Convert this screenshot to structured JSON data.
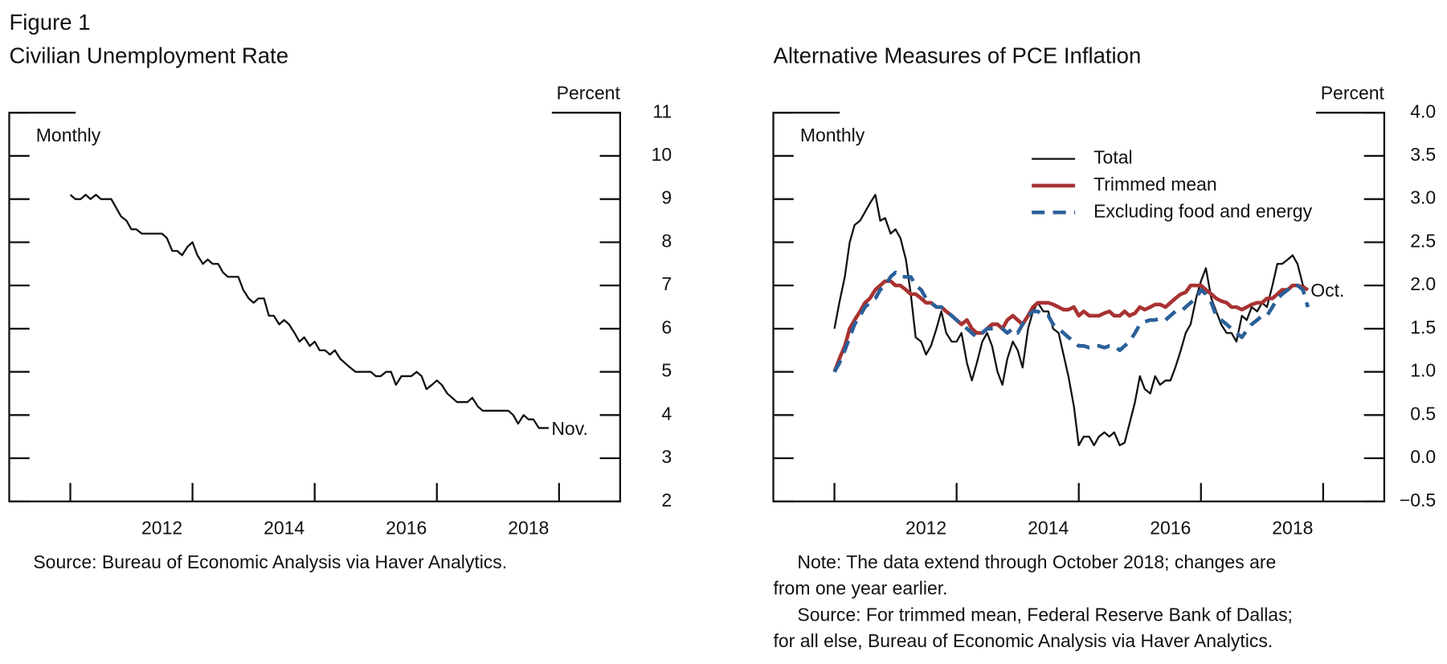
{
  "figure_label": "Figure 1",
  "chart_data": [
    {
      "type": "line",
      "title": "Civilian Unemployment Rate",
      "y_unit": "Percent",
      "frequency": "Monthly",
      "end_label": "Nov.",
      "source": [
        "Source: Bureau of Economic Analysis via Haver Analytics."
      ],
      "color": "#111111",
      "x": [
        2011.0,
        2011.08,
        2011.17,
        2011.25,
        2011.33,
        2011.42,
        2011.5,
        2011.58,
        2011.67,
        2011.75,
        2011.83,
        2011.92,
        2012.0,
        2012.08,
        2012.17,
        2012.25,
        2012.33,
        2012.42,
        2012.5,
        2012.58,
        2012.67,
        2012.75,
        2012.83,
        2012.92,
        2013.0,
        2013.08,
        2013.17,
        2013.25,
        2013.33,
        2013.42,
        2013.5,
        2013.58,
        2013.67,
        2013.75,
        2013.83,
        2013.92,
        2014.0,
        2014.08,
        2014.17,
        2014.25,
        2014.33,
        2014.42,
        2014.5,
        2014.58,
        2014.67,
        2014.75,
        2014.83,
        2014.92,
        2015.0,
        2015.08,
        2015.17,
        2015.25,
        2015.33,
        2015.42,
        2015.5,
        2015.58,
        2015.67,
        2015.75,
        2015.83,
        2015.92,
        2016.0,
        2016.08,
        2016.17,
        2016.25,
        2016.33,
        2016.42,
        2016.5,
        2016.58,
        2016.67,
        2016.75,
        2016.83,
        2016.92,
        2017.0,
        2017.08,
        2017.17,
        2017.25,
        2017.33,
        2017.42,
        2017.5,
        2017.58,
        2017.67,
        2017.75,
        2017.83,
        2017.92,
        2018.0,
        2018.08,
        2018.17,
        2018.25,
        2018.33,
        2018.42,
        2018.5,
        2018.58,
        2018.67,
        2018.75,
        2018.83
      ],
      "values": [
        9.1,
        9.0,
        9.0,
        9.1,
        9.0,
        9.1,
        9.0,
        9.0,
        9.0,
        8.8,
        8.6,
        8.5,
        8.3,
        8.3,
        8.2,
        8.2,
        8.2,
        8.2,
        8.2,
        8.1,
        7.8,
        7.8,
        7.7,
        7.9,
        8.0,
        7.7,
        7.5,
        7.6,
        7.5,
        7.5,
        7.3,
        7.2,
        7.2,
        7.2,
        6.9,
        6.7,
        6.6,
        6.7,
        6.7,
        6.3,
        6.3,
        6.1,
        6.2,
        6.1,
        5.9,
        5.7,
        5.8,
        5.6,
        5.7,
        5.5,
        5.5,
        5.4,
        5.5,
        5.3,
        5.2,
        5.1,
        5.0,
        5.0,
        5.0,
        5.0,
        4.9,
        4.9,
        5.0,
        5.0,
        4.7,
        4.9,
        4.9,
        4.9,
        5.0,
        4.9,
        4.6,
        4.7,
        4.8,
        4.7,
        4.5,
        4.4,
        4.3,
        4.3,
        4.3,
        4.4,
        4.2,
        4.1,
        4.1,
        4.1,
        4.1,
        4.1,
        4.1,
        4.0,
        3.8,
        4.0,
        3.9,
        3.9,
        3.7,
        3.7,
        3.7
      ],
      "xlim": [
        2010,
        2020
      ],
      "xticks": [
        {
          "value": 2012.5,
          "label": "2012"
        },
        {
          "value": 2014.5,
          "label": "2014"
        },
        {
          "value": 2016.5,
          "label": "2016"
        },
        {
          "value": 2018.5,
          "label": "2018"
        }
      ],
      "xtick_marks": [
        2011,
        2013,
        2015,
        2017,
        2019
      ],
      "ylim": [
        2,
        11
      ],
      "yticks": [
        2,
        3,
        4,
        5,
        6,
        7,
        8,
        9,
        10,
        11
      ]
    },
    {
      "type": "line",
      "title": "Alternative Measures of PCE Inflation",
      "y_unit": "Percent",
      "frequency": "Monthly",
      "end_label": "Oct.",
      "legend": "upper right",
      "source": [
        "Note: The data extend through October 2018; changes are",
        "from one year earlier.",
        "Source: For trimmed mean, Federal Reserve Bank of Dallas;",
        "for all else, Bureau of Economic Analysis via Haver Analytics."
      ],
      "x": [
        2011.0,
        2011.08,
        2011.17,
        2011.25,
        2011.33,
        2011.42,
        2011.5,
        2011.58,
        2011.67,
        2011.75,
        2011.83,
        2011.92,
        2012.0,
        2012.08,
        2012.17,
        2012.25,
        2012.33,
        2012.42,
        2012.5,
        2012.58,
        2012.67,
        2012.75,
        2012.83,
        2012.92,
        2013.0,
        2013.08,
        2013.17,
        2013.25,
        2013.33,
        2013.42,
        2013.5,
        2013.58,
        2013.67,
        2013.75,
        2013.83,
        2013.92,
        2014.0,
        2014.08,
        2014.17,
        2014.25,
        2014.33,
        2014.42,
        2014.5,
        2014.58,
        2014.67,
        2014.75,
        2014.83,
        2014.92,
        2015.0,
        2015.08,
        2015.17,
        2015.25,
        2015.33,
        2015.42,
        2015.5,
        2015.58,
        2015.67,
        2015.75,
        2015.83,
        2015.92,
        2016.0,
        2016.08,
        2016.17,
        2016.25,
        2016.33,
        2016.42,
        2016.5,
        2016.58,
        2016.67,
        2016.75,
        2016.83,
        2016.92,
        2017.0,
        2017.08,
        2017.17,
        2017.25,
        2017.33,
        2017.42,
        2017.5,
        2017.58,
        2017.67,
        2017.75,
        2017.83,
        2017.92,
        2018.0,
        2018.08,
        2018.17,
        2018.25,
        2018.33,
        2018.42,
        2018.5,
        2018.58,
        2018.67,
        2018.75
      ],
      "series": [
        {
          "name": "Total",
          "color": "#111111",
          "width": 2,
          "dash": false,
          "values": [
            1.5,
            1.8,
            2.1,
            2.5,
            2.7,
            2.75,
            2.85,
            2.95,
            3.05,
            2.75,
            2.78,
            2.6,
            2.65,
            2.55,
            2.3,
            1.9,
            1.4,
            1.35,
            1.2,
            1.3,
            1.5,
            1.7,
            1.45,
            1.35,
            1.35,
            1.45,
            1.1,
            0.9,
            1.1,
            1.35,
            1.45,
            1.3,
            1.0,
            0.85,
            1.15,
            1.35,
            1.25,
            1.05,
            1.5,
            1.7,
            1.8,
            1.7,
            1.7,
            1.5,
            1.45,
            1.2,
            0.95,
            0.6,
            0.15,
            0.25,
            0.25,
            0.15,
            0.25,
            0.3,
            0.25,
            0.3,
            0.15,
            0.18,
            0.4,
            0.65,
            0.95,
            0.8,
            0.75,
            0.95,
            0.85,
            0.9,
            0.9,
            1.05,
            1.25,
            1.45,
            1.55,
            1.85,
            2.05,
            2.2,
            1.85,
            1.7,
            1.55,
            1.45,
            1.45,
            1.35,
            1.65,
            1.6,
            1.75,
            1.7,
            1.8,
            1.75,
            2.0,
            2.25,
            2.25,
            2.3,
            2.35,
            2.25,
            2.0,
            1.95
          ]
        },
        {
          "name": "Trimmed mean",
          "color": "#a83232",
          "width": 4,
          "dash": false,
          "values": [
            1.0,
            1.15,
            1.3,
            1.5,
            1.6,
            1.7,
            1.8,
            1.85,
            1.95,
            2.0,
            2.05,
            2.05,
            2.0,
            2.0,
            1.95,
            1.9,
            1.9,
            1.85,
            1.8,
            1.8,
            1.75,
            1.75,
            1.7,
            1.65,
            1.6,
            1.55,
            1.6,
            1.5,
            1.45,
            1.45,
            1.5,
            1.55,
            1.55,
            1.5,
            1.6,
            1.65,
            1.6,
            1.55,
            1.65,
            1.75,
            1.8,
            1.8,
            1.8,
            1.78,
            1.75,
            1.72,
            1.72,
            1.75,
            1.65,
            1.7,
            1.65,
            1.65,
            1.65,
            1.68,
            1.7,
            1.65,
            1.65,
            1.7,
            1.65,
            1.68,
            1.75,
            1.72,
            1.75,
            1.78,
            1.78,
            1.75,
            1.8,
            1.85,
            1.9,
            1.92,
            2.0,
            2.0,
            2.0,
            1.95,
            1.9,
            1.85,
            1.82,
            1.8,
            1.75,
            1.75,
            1.72,
            1.75,
            1.78,
            1.8,
            1.8,
            1.85,
            1.85,
            1.9,
            1.95,
            1.95,
            2.0,
            2.0,
            1.98,
            1.95
          ]
        },
        {
          "name": "Excluding food and energy",
          "color": "#2a6099",
          "width": 4,
          "dash": true,
          "values": [
            1.0,
            1.1,
            1.25,
            1.4,
            1.55,
            1.65,
            1.75,
            1.8,
            1.85,
            1.95,
            2.0,
            2.1,
            2.15,
            2.1,
            2.1,
            2.1,
            2.0,
            1.95,
            1.85,
            1.8,
            1.75,
            1.75,
            1.7,
            1.65,
            1.6,
            1.55,
            1.5,
            1.45,
            1.4,
            1.45,
            1.5,
            1.5,
            1.5,
            1.5,
            1.45,
            1.5,
            1.45,
            1.55,
            1.65,
            1.7,
            1.7,
            1.65,
            1.65,
            1.55,
            1.5,
            1.45,
            1.4,
            1.35,
            1.3,
            1.3,
            1.28,
            1.3,
            1.3,
            1.28,
            1.3,
            1.3,
            1.25,
            1.3,
            1.35,
            1.45,
            1.55,
            1.58,
            1.6,
            1.6,
            1.62,
            1.6,
            1.65,
            1.7,
            1.7,
            1.75,
            1.8,
            1.85,
            1.95,
            1.9,
            1.8,
            1.65,
            1.6,
            1.55,
            1.5,
            1.45,
            1.4,
            1.48,
            1.55,
            1.6,
            1.65,
            1.65,
            1.75,
            1.85,
            1.9,
            1.95,
            2.0,
            2.0,
            1.95,
            1.75
          ]
        }
      ],
      "xlim": [
        2010,
        2020
      ],
      "xticks": [
        {
          "value": 2012.5,
          "label": "2012"
        },
        {
          "value": 2014.5,
          "label": "2014"
        },
        {
          "value": 2016.5,
          "label": "2016"
        },
        {
          "value": 2018.5,
          "label": "2018"
        }
      ],
      "xtick_marks": [
        2011,
        2013,
        2015,
        2017,
        2019
      ],
      "ylim": [
        -0.5,
        4.0
      ],
      "yticks": [
        {
          "value": -0.5,
          "label": "−0.5"
        },
        {
          "value": 0,
          "label": "0.0"
        },
        0.5,
        {
          "value": 1,
          "label": "1.0"
        },
        1.5,
        {
          "value": 2,
          "label": "2.0"
        },
        2.5,
        {
          "value": 3,
          "label": "3.0"
        },
        3.5,
        {
          "value": 4,
          "label": "4.0"
        }
      ]
    }
  ]
}
